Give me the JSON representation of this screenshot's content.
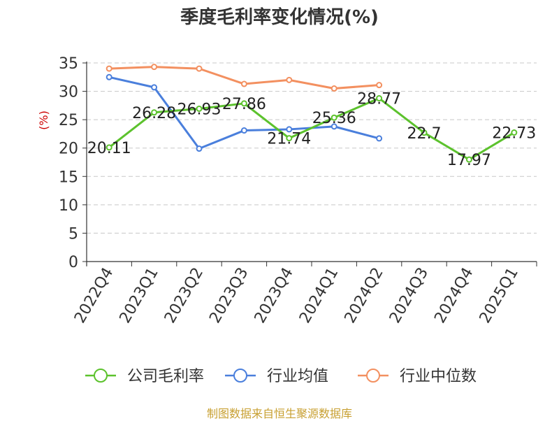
{
  "chart_data": {
    "type": "line",
    "title": "季度毛利率变化情况(%)",
    "ylabel": "(%)",
    "xlabel": "",
    "categories": [
      "2022Q4",
      "2023Q1",
      "2023Q2",
      "2023Q3",
      "2023Q4",
      "2024Q1",
      "2024Q2",
      "2024Q3",
      "2024Q4",
      "2025Q1"
    ],
    "ylim": [
      0,
      35
    ],
    "yticks": [
      0,
      5,
      10,
      15,
      20,
      25,
      30,
      35
    ],
    "grid": "horizontal dashed",
    "legend_position": "bottom",
    "series": [
      {
        "name": "公司毛利率",
        "color": "#5cc22d",
        "show_labels": true,
        "values": [
          20.11,
          26.28,
          26.93,
          27.86,
          21.74,
          25.36,
          28.77,
          22.7,
          17.97,
          22.73
        ],
        "labels": [
          "20.11",
          "26.28",
          "26.93",
          "27.86",
          "21.74",
          "25.36",
          "28.77",
          "22.7",
          "17.97",
          "22.73"
        ]
      },
      {
        "name": "行业均值",
        "color": "#4a7fdc",
        "show_labels": false,
        "values": [
          32.5,
          30.7,
          19.9,
          23.1,
          23.3,
          23.8,
          21.7,
          null,
          null,
          null
        ]
      },
      {
        "name": "行业中位数",
        "color": "#f39060",
        "show_labels": false,
        "values": [
          34.0,
          34.3,
          34.0,
          31.3,
          32.0,
          30.5,
          31.1,
          null,
          null,
          null
        ]
      }
    ]
  },
  "source": {
    "text": "制图数据来自恒生聚源数据库",
    "color": "#c8a032"
  }
}
